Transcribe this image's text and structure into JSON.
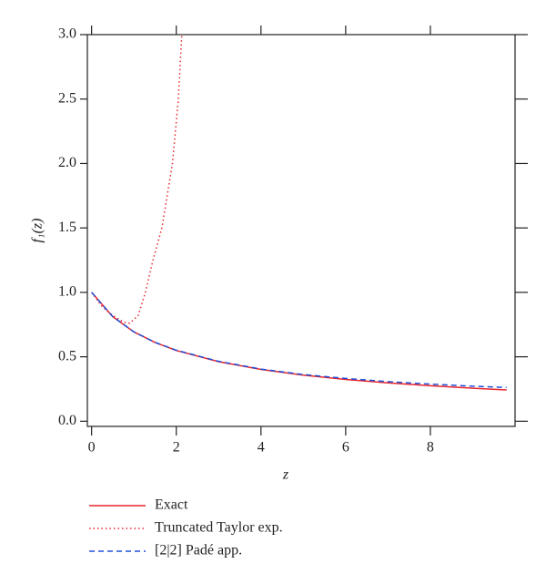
{
  "chart_data": {
    "type": "line",
    "xlabel": "z",
    "ylabel": "f₁(z)",
    "xlim": [
      -0.1,
      10
    ],
    "ylim": [
      -0.04,
      3.0
    ],
    "xticks": [
      0,
      2,
      4,
      6,
      8
    ],
    "yticks": [
      {
        "value": 0,
        "label": "0.0"
      },
      0.5,
      {
        "value": 1,
        "label": "1.0"
      },
      1.5,
      {
        "value": 2,
        "label": "2.0"
      },
      2.5,
      {
        "value": 3,
        "label": "3.0"
      }
    ],
    "series": [
      {
        "name": "Exact",
        "color": "#e8262d",
        "dash": "solid",
        "x": [
          0,
          0.5,
          1,
          1.5,
          2,
          3,
          4,
          5,
          6,
          7,
          8,
          9,
          9.8
        ],
        "values": [
          1,
          0.811,
          0.693,
          0.611,
          0.549,
          0.462,
          0.402,
          0.358,
          0.324,
          0.297,
          0.275,
          0.256,
          0.243
        ]
      },
      {
        "name": "Truncated Taylor exp.",
        "color": "#e8262d",
        "dash": "dotted",
        "x": [
          0,
          0.25,
          0.5,
          0.75,
          0.9,
          1.1,
          1.27,
          1.45,
          1.66,
          1.91,
          2.05,
          2.13
        ],
        "values": [
          1,
          0.89,
          0.82,
          0.77,
          0.76,
          0.82,
          1.0,
          1.25,
          1.5,
          2.0,
          2.5,
          3.0
        ]
      },
      {
        "name": "[2|2] Padé app.",
        "color": "#2050d8",
        "dash": "dashed",
        "x": [
          0,
          0.5,
          1,
          1.5,
          2,
          3,
          4,
          5,
          6,
          7,
          8,
          9,
          9.8
        ],
        "values": [
          1,
          0.811,
          0.693,
          0.612,
          0.551,
          0.465,
          0.405,
          0.362,
          0.332,
          0.307,
          0.288,
          0.272,
          0.262
        ]
      }
    ]
  }
}
